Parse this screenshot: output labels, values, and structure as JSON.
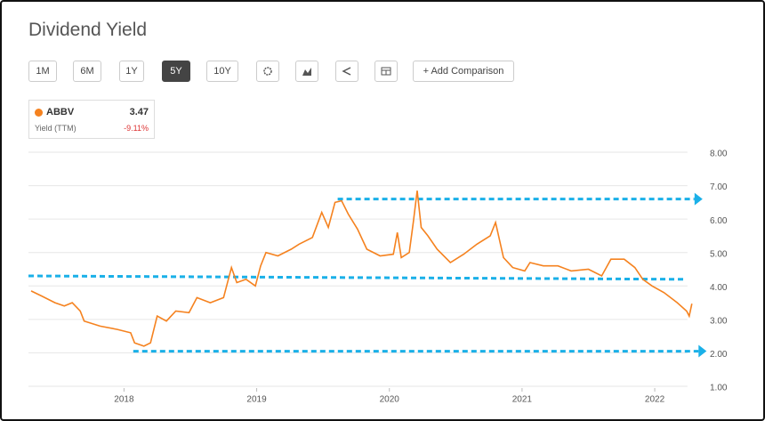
{
  "header": {
    "title": "Dividend Yield"
  },
  "toolbar": {
    "buttons": [
      {
        "label": "1M",
        "active": false
      },
      {
        "label": "6M",
        "active": false
      },
      {
        "label": "1Y",
        "active": false
      },
      {
        "label": "5Y",
        "active": true
      },
      {
        "label": "10Y",
        "active": false
      }
    ],
    "add": "+ Add Comparison"
  },
  "legend": {
    "name": "ABBV",
    "value": "3.47",
    "sublabel": "Yield (TTM)",
    "change": "-9.11%"
  },
  "chart_data": {
    "type": "line",
    "series": [
      {
        "name": "ABBV",
        "color": "#f5821f",
        "x": [
          2017.3,
          2017.38,
          2017.48,
          2017.55,
          2017.61,
          2017.67,
          2017.7,
          2017.82,
          2017.95,
          2018.05,
          2018.08,
          2018.15,
          2018.2,
          2018.25,
          2018.32,
          2018.39,
          2018.49,
          2018.55,
          2018.65,
          2018.75,
          2018.81,
          2018.85,
          2018.92,
          2018.99,
          2019.03,
          2019.07,
          2019.16,
          2019.26,
          2019.32,
          2019.42,
          2019.49,
          2019.54,
          2019.59,
          2019.64,
          2019.69,
          2019.76,
          2019.83,
          2019.93,
          2020.03,
          2020.06,
          2020.09,
          2020.15,
          2020.18,
          2020.21,
          2020.24,
          2020.29,
          2020.36,
          2020.46,
          2020.56,
          2020.66,
          2020.76,
          2020.8,
          2020.86,
          2020.93,
          2021.02,
          2021.06,
          2021.16,
          2021.27,
          2021.37,
          2021.5,
          2021.6,
          2021.67,
          2021.77,
          2021.85,
          2021.91,
          2021.98,
          2022.07,
          2022.17,
          2022.24,
          2022.26,
          2022.28
        ],
        "values": [
          3.85,
          3.7,
          3.5,
          3.4,
          3.5,
          3.25,
          2.95,
          2.8,
          2.7,
          2.6,
          2.3,
          2.2,
          2.3,
          3.1,
          2.95,
          3.25,
          3.2,
          3.65,
          3.5,
          3.65,
          4.55,
          4.1,
          4.2,
          4.0,
          4.6,
          5.0,
          4.9,
          5.1,
          5.25,
          5.45,
          6.2,
          5.75,
          6.5,
          6.55,
          6.15,
          5.7,
          5.1,
          4.9,
          4.95,
          5.6,
          4.85,
          5.0,
          5.9,
          6.85,
          5.75,
          5.5,
          5.1,
          4.7,
          4.95,
          5.25,
          5.5,
          5.9,
          4.85,
          4.55,
          4.45,
          4.7,
          4.6,
          4.6,
          4.45,
          4.5,
          4.3,
          4.8,
          4.8,
          4.55,
          4.2,
          4.0,
          3.8,
          3.5,
          3.25,
          3.1,
          3.47
        ]
      }
    ],
    "reference_lines": [
      {
        "color": "#1ab0e8",
        "x": [
          2017.28,
          2022.24
        ],
        "values": [
          4.3,
          4.2
        ]
      },
      {
        "color": "#1ab0e8",
        "x": [
          2019.61,
          2022.3
        ],
        "values": [
          6.6,
          6.6
        ]
      },
      {
        "color": "#1ab0e8",
        "x": [
          2018.07,
          2022.33
        ],
        "values": [
          2.05,
          2.05
        ]
      }
    ],
    "xlim": [
      2017.28,
      2022.3
    ],
    "xticks": [
      2018,
      2019,
      2020,
      2021,
      2022
    ],
    "ylim": [
      1,
      8
    ],
    "yticks": [
      {
        "value": 1,
        "label": "1.00"
      },
      {
        "value": 2,
        "label": "2.00"
      },
      {
        "value": 3,
        "label": "3.00"
      },
      {
        "value": 4,
        "label": "4.00"
      },
      {
        "value": 5,
        "label": "5.00"
      },
      {
        "value": 6,
        "label": "6.00"
      },
      {
        "value": 7,
        "label": "7.00"
      },
      {
        "value": 8,
        "label": "8.00"
      }
    ],
    "grid": true
  }
}
